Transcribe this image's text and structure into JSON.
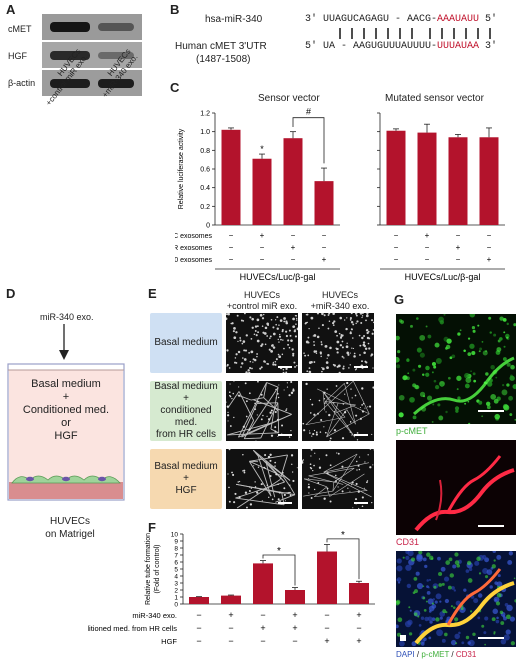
{
  "panelA": {
    "label": "A",
    "rows": [
      "cMET",
      "HGF",
      "β-actin"
    ],
    "lanes": [
      "HUVECs\n+control miR exo.",
      "HUVECs\n+miR-340 exo."
    ]
  },
  "panelB": {
    "label": "B",
    "mir_name": "hsa-miR-340",
    "utr_name": "Human cMET 3'UTR",
    "utr_range": "(1487-1508)",
    "mir_prefix": "3' UUAGUCAGAGU - AACG-",
    "mir_seed": "AAAUAUU",
    "mir_suffix": " 5'",
    "utr_prefix": "5' UA - AAGUGUUUAUUUU-",
    "utr_seed": "UUUAUAA",
    "utr_suffix": " 3'"
  },
  "panelC": {
    "label": "C",
    "left_title": "Sensor vector",
    "right_title": "Mutated sensor vector",
    "ylabel": "Relative luciferase activity",
    "row_labels": [
      "young BMSC exosomes",
      "Control miR exosomes",
      "miR-340 exosomes"
    ],
    "signs": [
      [
        "−",
        "+",
        "−",
        "−"
      ],
      [
        "−",
        "−",
        "+",
        "−"
      ],
      [
        "−",
        "−",
        "−",
        "+"
      ]
    ],
    "footer": "HUVECs/Luc/β-gal",
    "star": "*",
    "hash": "#",
    "yticks": [
      "0",
      "0.2",
      "0.4",
      "0.6",
      "0.8",
      "1.0",
      "1.2"
    ]
  },
  "panelD": {
    "label": "D",
    "arrow_label": "miR-340 exo.",
    "dish_text": [
      "Basal medium",
      "+",
      "Conditioned med.",
      "or",
      "HGF"
    ],
    "caption": [
      "HUVECs",
      "on Matrigel"
    ]
  },
  "panelE": {
    "label": "E",
    "col_heads": [
      "HUVECs\n+control miR exo.",
      "HUVECs\n+miR-340 exo."
    ],
    "conditions": [
      [
        "Basal medium"
      ],
      [
        "Basal medium",
        "+",
        "conditioned med.",
        "from HR cells"
      ],
      [
        "Basal medium",
        "+",
        "HGF"
      ]
    ],
    "colors": [
      "#cfe0f3",
      "#d6ead0",
      "#f6d9b0"
    ]
  },
  "panelF": {
    "label": "F",
    "ylabel": "Relative tube formation\n(Fold of control)",
    "yticks": [
      "0",
      "1",
      "2",
      "3",
      "4",
      "5",
      "6",
      "7",
      "8",
      "9",
      "10"
    ],
    "row_labels": [
      "miR-340 exo.",
      "Conditioned med. from HR cells",
      "HGF"
    ],
    "signs": [
      [
        "−",
        "+",
        "−",
        "+",
        "−",
        "+"
      ],
      [
        "−",
        "−",
        "+",
        "+",
        "−",
        "−"
      ],
      [
        "−",
        "−",
        "−",
        "−",
        "+",
        "+"
      ]
    ],
    "star": "*"
  },
  "panelG": {
    "label": "G",
    "label1": "p-cMET",
    "label2": "CD31",
    "merge": [
      "DAPI",
      " / ",
      "p-cMET",
      " / ",
      "CD31"
    ]
  },
  "chart_data": [
    {
      "type": "bar",
      "panel": "C-sensor",
      "title": "Sensor vector",
      "ylabel": "Relative luciferase activity",
      "ylim": [
        0,
        1.2
      ],
      "values": [
        1.02,
        0.71,
        0.93,
        0.47
      ],
      "errors": [
        0.02,
        0.05,
        0.07,
        0.14
      ],
      "color": "#b3132c"
    },
    {
      "type": "bar",
      "panel": "C-mutated",
      "title": "Mutated sensor vector",
      "ylabel": "Relative luciferase activity",
      "ylim": [
        0,
        1.2
      ],
      "values": [
        1.01,
        0.99,
        0.94,
        0.94
      ],
      "errors": [
        0.02,
        0.09,
        0.03,
        0.1
      ],
      "color": "#b3132c"
    },
    {
      "type": "bar",
      "panel": "F",
      "ylabel": "Relative tube formation (Fold of control)",
      "ylim": [
        0,
        10
      ],
      "values": [
        1.0,
        1.2,
        5.8,
        2.0,
        7.5,
        3.0
      ],
      "errors": [
        0.05,
        0.08,
        0.4,
        0.35,
        1.0,
        0.25
      ],
      "color": "#b3132c"
    }
  ]
}
